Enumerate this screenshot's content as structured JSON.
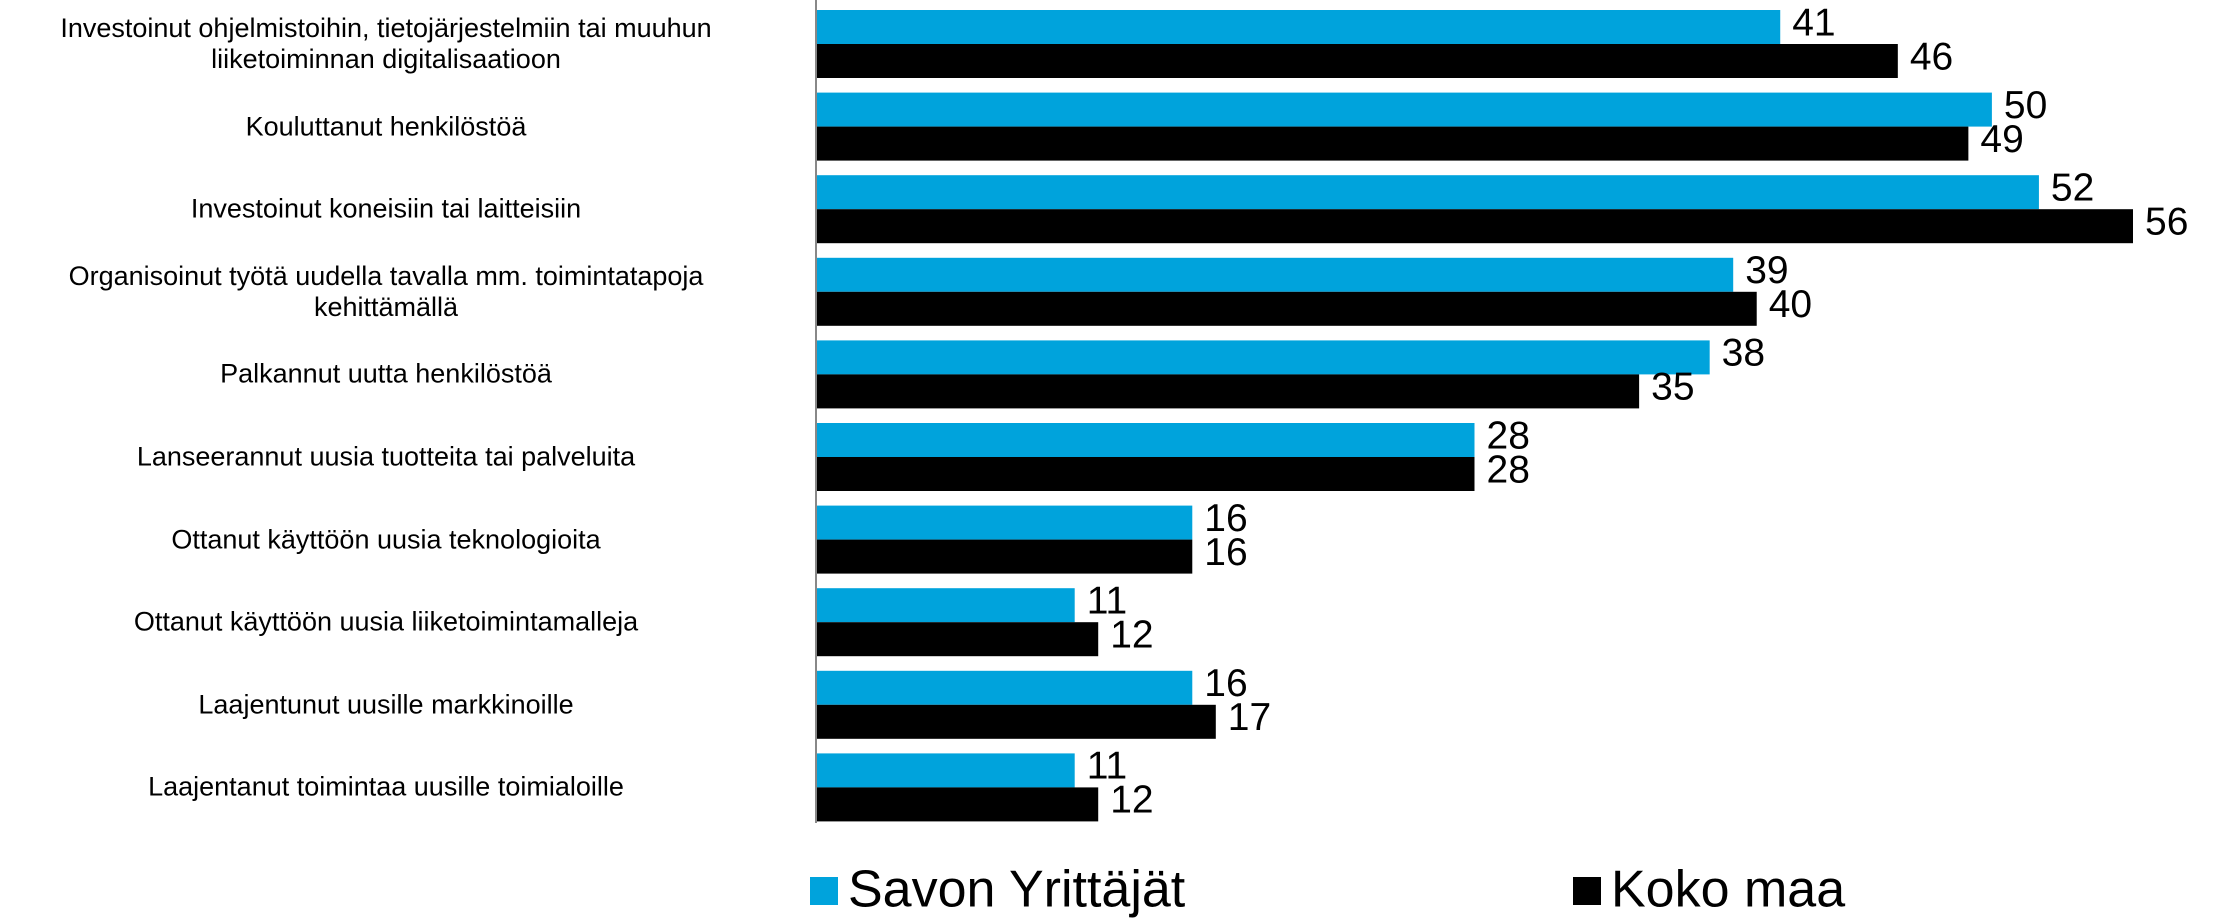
{
  "chart_data": {
    "type": "bar",
    "orientation": "horizontal",
    "categories": [
      "Investoinut ohjelmistoihin, tietojärjestelmiin tai muuhun\nliiketoiminnan digitalisaatioon",
      "Kouluttanut henkilöstöä",
      "Investoinut koneisiin tai laitteisiin",
      "Organisoinut työtä uudella tavalla mm. toimintatapoja\nkehittämällä",
      "Palkannut uutta henkilöstöä",
      "Lanseerannut uusia tuotteita tai palveluita",
      "Ottanut käyttöön uusia teknologioita",
      "Ottanut käyttöön uusia liiketoimintamalleja",
      "Laajentunut uusille markkinoille",
      "Laajentanut toimintaa uusille toimialoille"
    ],
    "series": [
      {
        "name": "Savon Yrittäjät",
        "color": "#00a3dc",
        "values": [
          41,
          50,
          52,
          39,
          38,
          28,
          16,
          11,
          16,
          11
        ]
      },
      {
        "name": "Koko maa",
        "color": "#000000",
        "values": [
          46,
          49,
          56,
          40,
          35,
          28,
          16,
          12,
          17,
          12
        ]
      }
    ],
    "xlim": [
      0,
      56
    ]
  }
}
